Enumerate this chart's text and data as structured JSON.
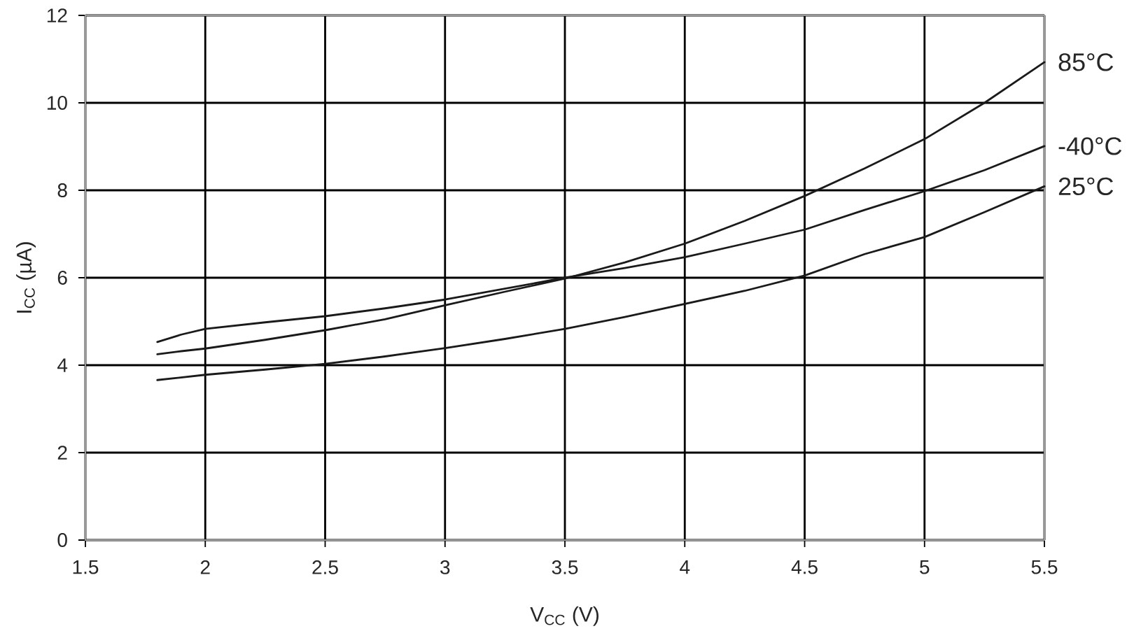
{
  "chart_data": {
    "type": "line",
    "xlabel": "V$_{CC}$ (V)",
    "ylabel": "I$_{CC}$ (µA)",
    "x": [
      1.8,
      1.9,
      2.0,
      2.25,
      2.5,
      2.75,
      3.0,
      3.25,
      3.5,
      3.75,
      4.0,
      4.25,
      4.5,
      4.75,
      5.0,
      5.25,
      5.5
    ],
    "series": [
      {
        "name": "85°C",
        "color": "#1a1a1a",
        "values": [
          4.25,
          4.32,
          4.38,
          4.58,
          4.8,
          5.05,
          5.37,
          5.68,
          5.98,
          6.35,
          6.78,
          7.3,
          7.87,
          8.5,
          9.17,
          10.0,
          10.93
        ]
      },
      {
        "name": "-40°C",
        "color": "#1a1a1a",
        "values": [
          4.53,
          4.7,
          4.83,
          4.98,
          5.12,
          5.3,
          5.5,
          5.75,
          6.0,
          6.22,
          6.47,
          6.78,
          7.1,
          7.55,
          7.98,
          8.46,
          9.01
        ]
      },
      {
        "name": "25°C",
        "color": "#1a1a1a",
        "values": [
          3.66,
          3.72,
          3.78,
          3.9,
          4.03,
          4.2,
          4.39,
          4.6,
          4.83,
          5.1,
          5.4,
          5.7,
          6.05,
          6.54,
          6.93,
          7.5,
          8.09
        ]
      }
    ],
    "xlim": [
      1.5,
      5.5
    ],
    "ylim": [
      0,
      12
    ],
    "xticks": [
      1.5,
      2,
      2.5,
      3,
      3.5,
      4,
      4.5,
      5,
      5.5
    ],
    "yticks": [
      0,
      2,
      4,
      6,
      8,
      10,
      12
    ],
    "grid": true
  }
}
